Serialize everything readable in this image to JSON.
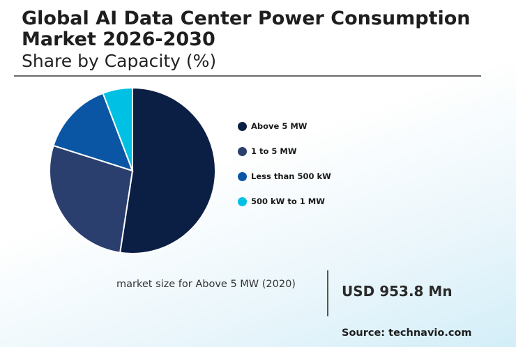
{
  "header": {
    "title": "Global AI Data Center Power Consumption Market 2026-2030",
    "subtitle": "Share by Capacity (%)"
  },
  "chart_data": {
    "type": "pie",
    "title": "Global AI Data Center Power Consumption Market 2026-2030",
    "subtitle": "Share by Capacity (%)",
    "categories": [
      "Above 5 MW",
      "1 to 5 MW",
      "Less than 500 kW",
      "500 kW to 1 MW"
    ],
    "values": [
      52.4,
      27.5,
      14.3,
      5.8
    ],
    "colors": [
      "#0b1f45",
      "#2b3f6f",
      "#0a56a5",
      "#00c0e4"
    ],
    "start": "12 o'clock, clockwise",
    "legend_position": "right"
  },
  "legend": {
    "items": [
      {
        "label": "Above 5 MW",
        "color": "#0b1f45"
      },
      {
        "label": "1 to 5 MW",
        "color": "#2b3f6f"
      },
      {
        "label": "Less than 500 kW",
        "color": "#0a56a5"
      },
      {
        "label": "500 kW to 1 MW",
        "color": "#00c0e4"
      }
    ]
  },
  "footer": {
    "caption": "market size for Above 5 MW (2020)",
    "value": "USD 953.8 Mn",
    "source": "Source: technavio.com"
  }
}
